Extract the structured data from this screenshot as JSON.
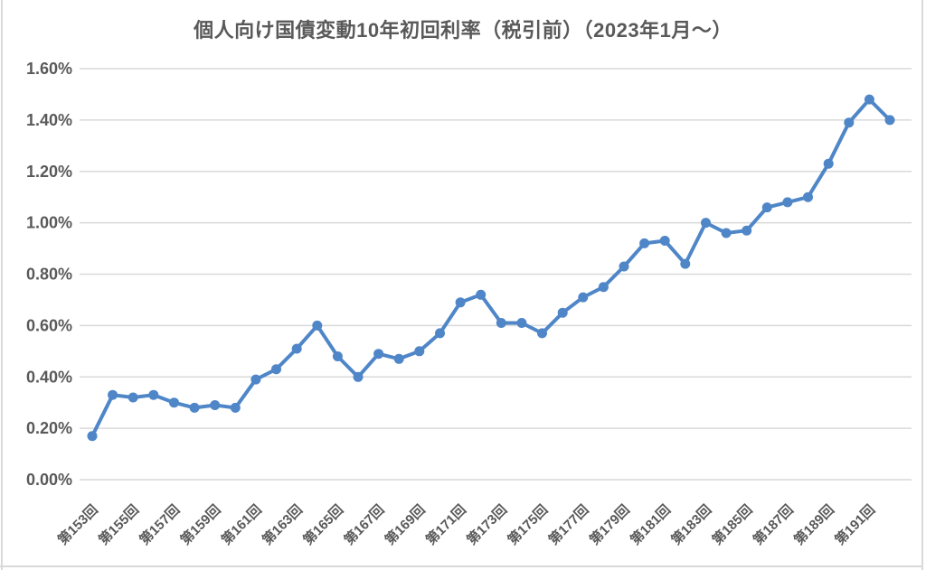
{
  "title": "個人向け国債変動10年初回利率（税引前）（2023年1月～）",
  "colors": {
    "title_text": "#595959",
    "axis_text": "#595959",
    "gridline": "#d9d9d9",
    "series": "#4f86c8",
    "background": "#ffffff",
    "sheet_border": "#d9d9d9"
  },
  "chart_data": {
    "type": "line",
    "title": "個人向け国債変動10年初回利率（税引前）（2023年1月～）",
    "xlabel": "",
    "ylabel": "",
    "ylim": [
      0,
      1.6
    ],
    "ytick_step": 0.2,
    "grid": true,
    "legend": "none",
    "marker": "circle",
    "categories": [
      "第153回",
      "第154回",
      "第155回",
      "第156回",
      "第157回",
      "第158回",
      "第159回",
      "第160回",
      "第161回",
      "第162回",
      "第163回",
      "第164回",
      "第165回",
      "第166回",
      "第167回",
      "第168回",
      "第169回",
      "第170回",
      "第171回",
      "第172回",
      "第173回",
      "第174回",
      "第175回",
      "第176回",
      "第177回",
      "第178回",
      "第179回",
      "第180回",
      "第181回",
      "第182回",
      "第183回",
      "第184回",
      "第185回",
      "第186回",
      "第187回",
      "第188回",
      "第189回",
      "第190回",
      "第191回",
      "第192回"
    ],
    "values": [
      0.17,
      0.33,
      0.32,
      0.33,
      0.3,
      0.28,
      0.29,
      0.28,
      0.39,
      0.43,
      0.51,
      0.6,
      0.48,
      0.4,
      0.49,
      0.47,
      0.5,
      0.57,
      0.69,
      0.72,
      0.61,
      0.61,
      0.57,
      0.65,
      0.71,
      0.75,
      0.83,
      0.92,
      0.93,
      0.84,
      1.0,
      0.96,
      0.97,
      1.06,
      1.08,
      1.1,
      1.23,
      1.39,
      1.48,
      1.4
    ],
    "x_tick_every": 2,
    "x_tick_labels_shown": [
      "第153回",
      "第155回",
      "第157回",
      "第159回",
      "第161回",
      "第163回",
      "第165回",
      "第167回",
      "第169回",
      "第171回",
      "第173回",
      "第175回",
      "第177回",
      "第179回",
      "第181回",
      "第183回",
      "第185回",
      "第187回",
      "第189回",
      "第191回"
    ],
    "y_tick_labels": [
      "0.00%",
      "0.20%",
      "0.40%",
      "0.60%",
      "0.80%",
      "1.00%",
      "1.20%",
      "1.40%",
      "1.60%"
    ],
    "y_tick_values": [
      0,
      0.2,
      0.4,
      0.6,
      0.8,
      1.0,
      1.2,
      1.4,
      1.6
    ]
  }
}
